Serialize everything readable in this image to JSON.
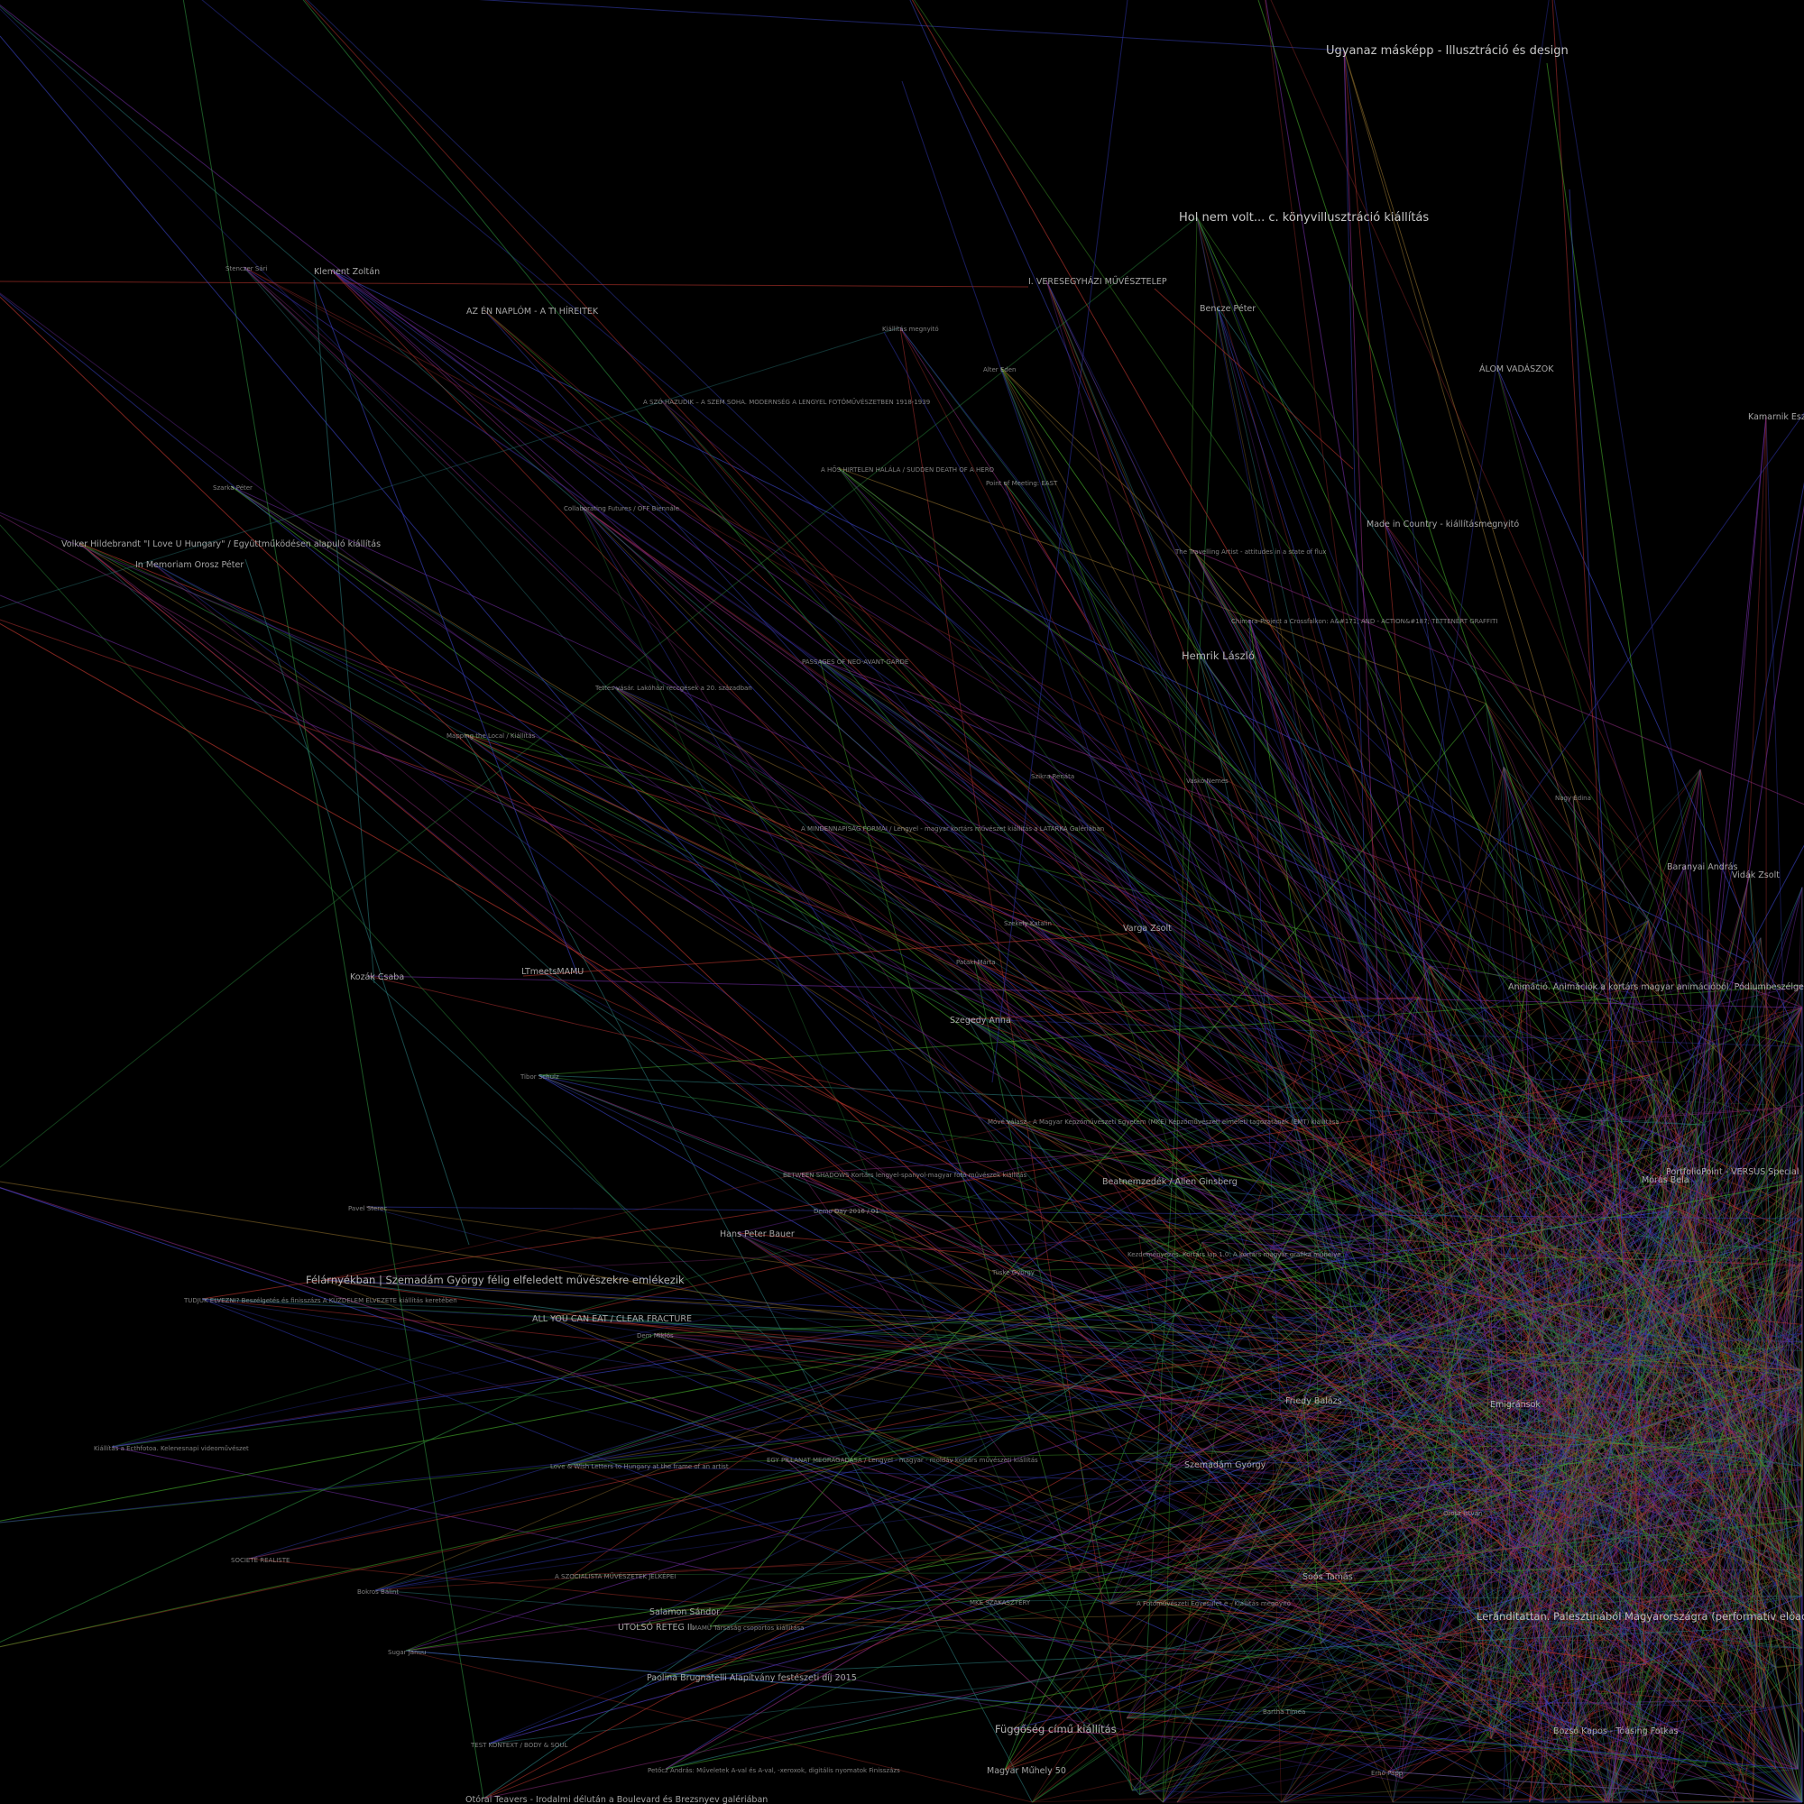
{
  "theme": {
    "background": "#000000",
    "label_color": "#d2d2d2",
    "edge_colors": [
      "#2a2f9a",
      "#3a44c8",
      "#6a2a9a",
      "#8a2a7a",
      "#9a2a2a",
      "#b8342c",
      "#2a8a3a",
      "#44aa2a",
      "#2a7a7a",
      "#8a6a2a"
    ]
  },
  "nodes": [
    {
      "id": "n1",
      "label": "Ugyanaz másképp - Illusztráció és design",
      "size": "xl"
    },
    {
      "id": "n2",
      "label": "Hol nem volt... c. könyvillusztráció kiállítás",
      "size": "xl"
    },
    {
      "id": "n3",
      "label": "I. VERESEGYHÁZI MŰVÉSZTELEP",
      "size": "m"
    },
    {
      "id": "n4",
      "label": "Klement Zoltán",
      "size": "m"
    },
    {
      "id": "n5",
      "label": "Stenczer Sári",
      "size": "s"
    },
    {
      "id": "n6",
      "label": "AZ ÉN NAPLÓM - A TI HÍREITEK",
      "size": "m"
    },
    {
      "id": "n7",
      "label": "Bencze Péter",
      "size": "m"
    },
    {
      "id": "n8",
      "label": "Kiállítás megnyitó",
      "size": "s"
    },
    {
      "id": "n9",
      "label": "Alter Eden",
      "size": "s"
    },
    {
      "id": "n10",
      "label": "ÁLOM VADÁSZOK",
      "size": "m"
    },
    {
      "id": "n11",
      "label": "A SZÓ HAZUDIK – A SZEM SOHA. MODERNSÉG A LENGYEL FOTÓMŰVÉSZETBEN 1918-1939",
      "size": "s"
    },
    {
      "id": "n12",
      "label": "A HŐS HIRTELEN HALÁLA / SUDDEN DEATH OF A HERO",
      "size": "s"
    },
    {
      "id": "n13",
      "label": "Point of Meeting: EAST",
      "size": "s"
    },
    {
      "id": "n14",
      "label": "Szarka Péter",
      "size": "s"
    },
    {
      "id": "n15",
      "label": "Collaborating Futures / OFF Biennále",
      "size": "s"
    },
    {
      "id": "n16",
      "label": "Made in Country - kiállításmegnyitó",
      "size": "m"
    },
    {
      "id": "n17",
      "label": "Volker Hildebrandt \"I Love U Hungary\" / Együttműködésen alapuló kiállítás",
      "size": "m"
    },
    {
      "id": "n18",
      "label": "In Memoriam Orosz Péter",
      "size": "m"
    },
    {
      "id": "n19",
      "label": "The Travelling Artist - attitudes in a state of flux",
      "size": "s"
    },
    {
      "id": "n20",
      "label": "Chimera-Project a Crossfalkon: A&#171; AND - ACTION&#187; TETTENÉRT GRAFFITI",
      "size": "s"
    },
    {
      "id": "n21",
      "label": "Hemrik László",
      "size": "l"
    },
    {
      "id": "n22",
      "label": "PASSAGES OF NEO-AVANT-GARDE",
      "size": "s"
    },
    {
      "id": "n23",
      "label": "Tettes vásár. Lakóházi reccgések a 20. században",
      "size": "s"
    },
    {
      "id": "n24",
      "label": "Mapping the Local / Kiállítás",
      "size": "s"
    },
    {
      "id": "n25",
      "label": "Szikra Renáta",
      "size": "s"
    },
    {
      "id": "n26",
      "label": "Vaskó Nemes",
      "size": "s"
    },
    {
      "id": "n27",
      "label": "A MINDENNAPISÁG FORMÁI / Lengyel - magyar kortárs művészet kiállítás a LATARKA Galériában",
      "size": "s"
    },
    {
      "id": "n28",
      "label": "Varga Zsolt",
      "size": "m"
    },
    {
      "id": "n29",
      "label": "Szekely Katalin",
      "size": "s"
    },
    {
      "id": "n30",
      "label": "Pataki Márta",
      "size": "s"
    },
    {
      "id": "n31",
      "label": "Kozák Csaba",
      "size": "m"
    },
    {
      "id": "n32",
      "label": "LTmeetsMAMU",
      "size": "m"
    },
    {
      "id": "n33",
      "label": "Szegedy Anna",
      "size": "m"
    },
    {
      "id": "n34",
      "label": "Nagy Edina",
      "size": "s"
    },
    {
      "id": "n35",
      "label": "Baranyai András",
      "size": "m"
    },
    {
      "id": "n36",
      "label": "Vidák Zsolt",
      "size": "m"
    },
    {
      "id": "n37",
      "label": "Animáció. Animációk a kortárs magyar animációból. Pódiumbeszélgetés és vetítés",
      "size": "m"
    },
    {
      "id": "n38",
      "label": "Tibor Schulz",
      "size": "s"
    },
    {
      "id": "n39",
      "label": "Móvé válasz - A Magyar Képzőművészeti Egyetem (MKE) Képzőművészeti elméleti tagozatának (EMT) kiállítása",
      "size": "s"
    },
    {
      "id": "n40",
      "label": "BETWEEN SHADOWS Kortárs lengyel-spanyol-magyar fotó művészek kiállítás",
      "size": "s"
    },
    {
      "id": "n41",
      "label": "Beatnemzedék / Allen Ginsberg",
      "size": "m"
    },
    {
      "id": "n42",
      "label": "Pavel Sterec",
      "size": "s"
    },
    {
      "id": "n43",
      "label": "Demo Day 2016 / 01",
      "size": "s"
    },
    {
      "id": "n44",
      "label": "Hans Peter Bauer",
      "size": "m"
    },
    {
      "id": "n45",
      "label": "Félárnyékban | Szemadám György félig elfeledett művészekre emlékezik",
      "size": "l"
    },
    {
      "id": "n46",
      "label": "TUDJUK ELVEZNI? Beszélgetés és finisszázs A KÜZDELEM ELVEZETE kiállítás keretében",
      "size": "s"
    },
    {
      "id": "n47",
      "label": "ALL YOU CAN EAT / CLEAR FRACTURE",
      "size": "m"
    },
    {
      "id": "n48",
      "label": "Dem Miklós",
      "size": "s"
    },
    {
      "id": "n49",
      "label": "Szemadám György",
      "size": "m"
    },
    {
      "id": "n50",
      "label": "Friedy Balázs",
      "size": "m"
    },
    {
      "id": "n51",
      "label": "Emigránsok",
      "size": "m"
    },
    {
      "id": "n52",
      "label": "EGY PILLANAT MEGRAGADÁSA / Lengyel - magyar - moldáv kortárs művészeti kiállítás",
      "size": "s"
    },
    {
      "id": "n53",
      "label": "Love & Wish Letters to Hungary at the frame of an artist",
      "size": "s"
    },
    {
      "id": "n54",
      "label": "Kiállítás a Ecthfotoa. Kelenesnapi videoművészet",
      "size": "s"
    },
    {
      "id": "n55",
      "label": "SOCIETÉ REALISTE",
      "size": "s"
    },
    {
      "id": "n56",
      "label": "A SZOCIALISTA MŰVÉSZETEK JELKÉPEI",
      "size": "s"
    },
    {
      "id": "n57",
      "label": "Bokros Bálint",
      "size": "s"
    },
    {
      "id": "n58",
      "label": "Salamon Sándor",
      "size": "m"
    },
    {
      "id": "n59",
      "label": "UTOLSÓ RETEG II.",
      "size": "m"
    },
    {
      "id": "n60",
      "label": "MAMÜ Társaság csoportos kiállítása",
      "size": "s"
    },
    {
      "id": "n61",
      "label": "Paolina Brugnatelli Alapítvány festészeti díj 2015",
      "size": "m"
    },
    {
      "id": "n62",
      "label": "MKE SZAKASZTÉRY",
      "size": "s"
    },
    {
      "id": "n63",
      "label": "Függőség című kiállítás",
      "size": "l"
    },
    {
      "id": "n64",
      "label": "Magyar Műhely 50",
      "size": "m"
    },
    {
      "id": "n65",
      "label": "TEST KONTEXT / BODY & SOUL",
      "size": "s"
    },
    {
      "id": "n66",
      "label": "Petőcz András: Műveletek A-val és A-val, -xeroxok, digitális nyomatok Finisszázs",
      "size": "s"
    },
    {
      "id": "n67",
      "label": "Otórai Teavers - Irodalmi délután a Boulevard és Brezsnyev galériában",
      "size": "m"
    },
    {
      "id": "n68",
      "label": "Leránditattan. Palesztinából Magyarországra (performatív előadás)",
      "size": "l"
    },
    {
      "id": "n69",
      "label": "Soós Tamás",
      "size": "m"
    },
    {
      "id": "n70",
      "label": "Kamarnik Eszter",
      "size": "m"
    },
    {
      "id": "n71",
      "label": "Sugar Januu",
      "size": "s"
    },
    {
      "id": "n72",
      "label": "Kezdeményezés. Kortárs lap 1.0: A kortárs magyar grafika műhelye",
      "size": "s"
    },
    {
      "id": "n73",
      "label": "Ernő Papp",
      "size": "s"
    },
    {
      "id": "n74",
      "label": "Orosz Istvan",
      "size": "s"
    },
    {
      "id": "n75",
      "label": "Bozsó Kapos - Tóásing Fotkas",
      "size": "m"
    },
    {
      "id": "n76",
      "label": "Tüske György",
      "size": "s"
    },
    {
      "id": "n77",
      "label": "PortfolioPoint - VERSUS Special",
      "size": "m"
    },
    {
      "id": "n78",
      "label": "Mórás Bela",
      "size": "m"
    },
    {
      "id": "n79",
      "label": "A Fotóművészeti Egyesület e - Kiállítás megnyitó",
      "size": "s"
    },
    {
      "id": "n80",
      "label": "Bartha Tímea",
      "size": "s"
    }
  ]
}
